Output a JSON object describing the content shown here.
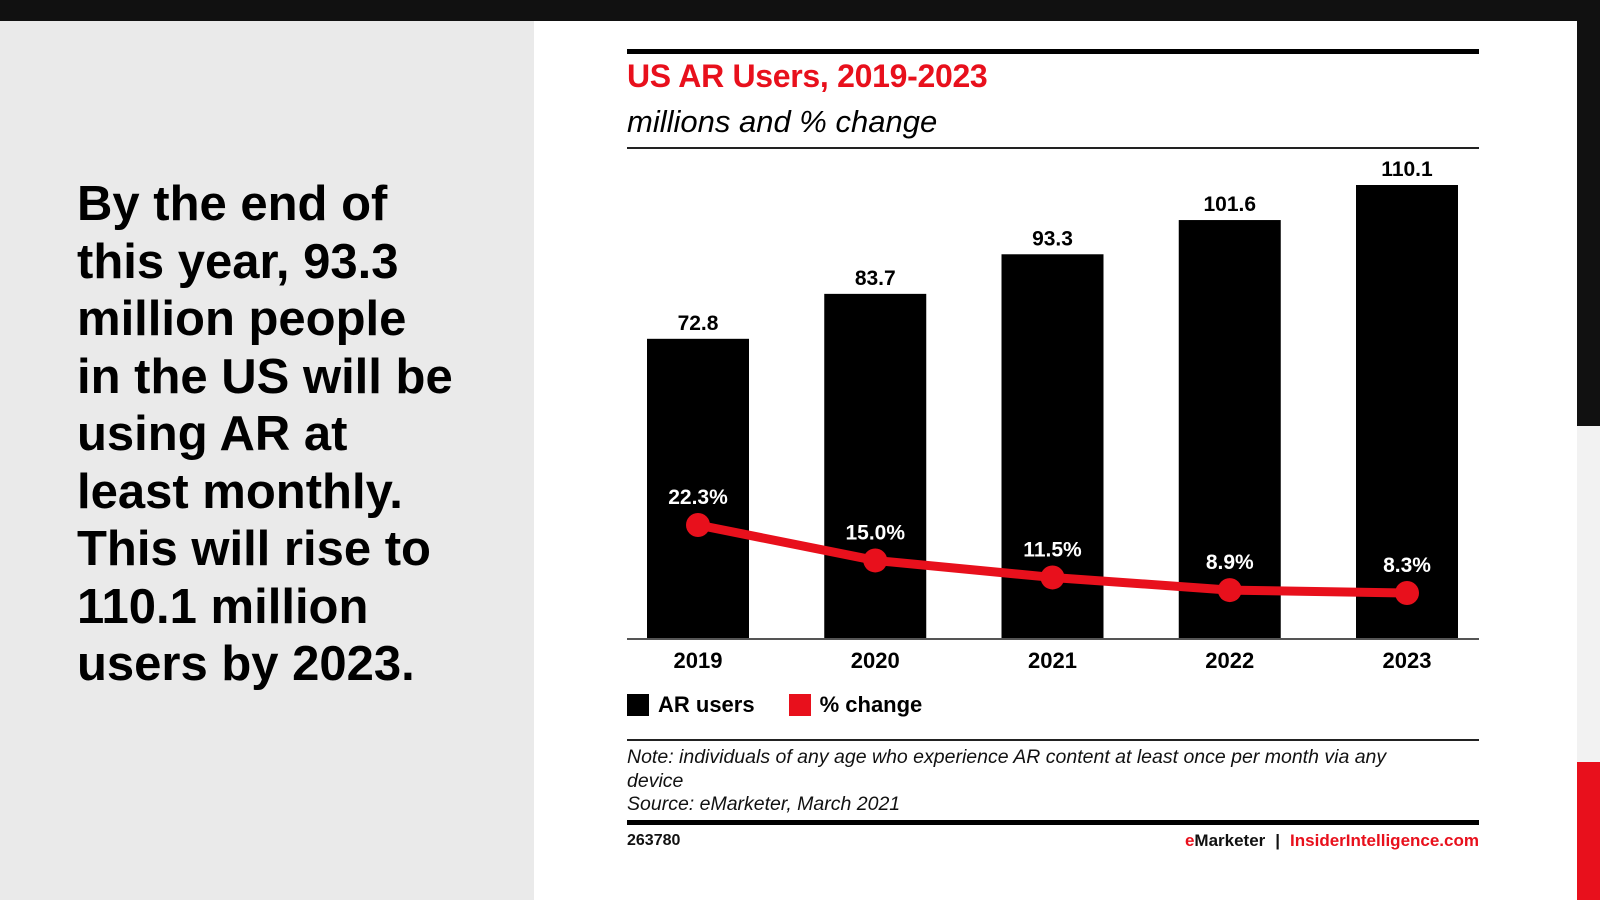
{
  "slide": {
    "headline": "By the end of\nthis year, 93.3\nmillion people\nin the US will be\nusing AR at\nleast monthly.\nThis will rise to\n110.1 million\nusers by 2023.",
    "colors": {
      "accent_red": "#e8101c",
      "bar_black": "#000000",
      "panel_gray": "#eaeaea",
      "frame_black": "#111111"
    }
  },
  "chart_data": {
    "type": "bar",
    "title": "US AR Users, 2019-2023",
    "subtitle": "millions and % change",
    "categories": [
      "2019",
      "2020",
      "2021",
      "2022",
      "2023"
    ],
    "series": [
      {
        "name": "AR users",
        "type": "bar",
        "color": "#000000",
        "values": [
          72.8,
          83.7,
          93.3,
          101.6,
          110.1
        ],
        "labels": [
          "72.8",
          "83.7",
          "93.3",
          "101.6",
          "110.1"
        ]
      },
      {
        "name": "% change",
        "type": "line",
        "color": "#e8101c",
        "values": [
          22.3,
          15.0,
          11.5,
          8.9,
          8.3
        ],
        "labels": [
          "22.3%",
          "15.0%",
          "11.5%",
          "8.9%",
          "8.3%"
        ]
      }
    ],
    "xlabel": "",
    "ylabel": "",
    "ylim": [
      0,
      110.1
    ],
    "grid": false,
    "legend_position": "bottom-left",
    "legend": [
      "AR users",
      "% change"
    ],
    "note": "Note: individuals of any age who experience AR content at least once per month via any",
    "note_cont": "device",
    "source": "Source: eMarketer, March 2021",
    "chart_id": "263780",
    "brand_e": "e",
    "brand_name": "Marketer",
    "brand_sep": "|",
    "brand_link": "InsiderIntelligence.com"
  }
}
